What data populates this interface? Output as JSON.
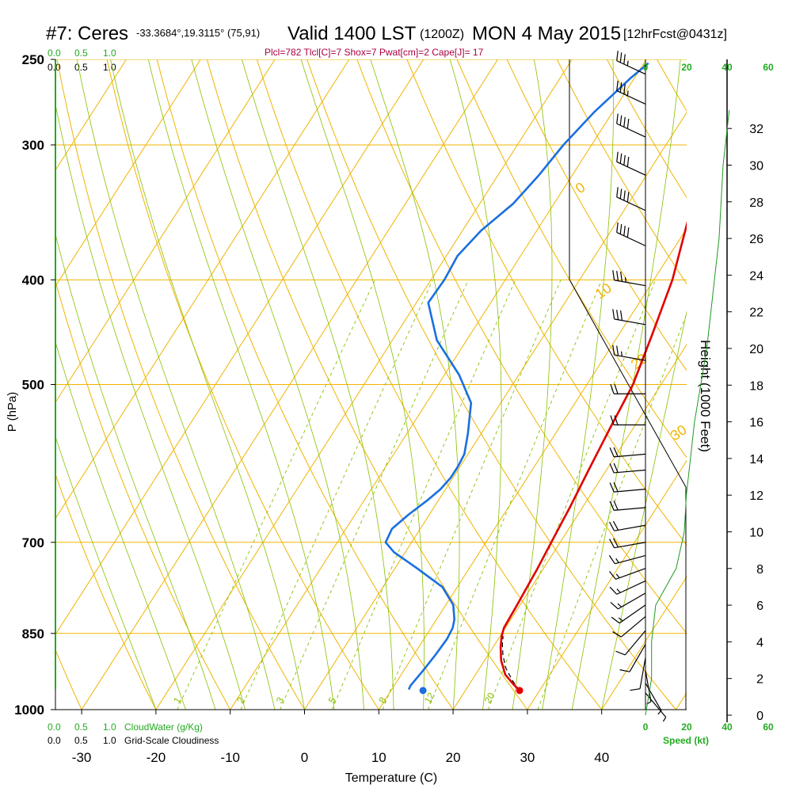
{
  "header": {
    "station": "#7: Ceres",
    "coords": "-33.3684°,19.3115° (75,91)",
    "valid": "Valid 1400 LST",
    "zulu": "(1200Z)",
    "date": "MON 4 May 2015",
    "fcst": "[12hrFcst@0431z]",
    "params": "Plcl=782 Tlcl[C]=7 Shox=7 Pwat[cm]=2 Cape[J]= 17"
  },
  "colors": {
    "temperature": "#e00000",
    "dewpoint": "#1a6fe0",
    "isotherm": "#f0b400",
    "dry_adiabat": "#f0b400",
    "moist_adiabat": "#88c000",
    "mixing_ratio": "#88c000",
    "cloud_scale": "#22aa22",
    "params_text": "#aa0044",
    "height_curve": "#229922"
  },
  "scales": {
    "cloudwater_ticks": [
      "0.0",
      "0.5",
      "1.0"
    ],
    "cloudiness_ticks": [
      "0.0",
      "0.5",
      "1.0"
    ],
    "cloudwater_label": "CloudWater (g/Kg)",
    "cloudiness_label": "Grid-Scale Cloudiness",
    "speed_ticks": [
      "0",
      "20",
      "40",
      "60"
    ],
    "speed_label": "Speed (kt)"
  },
  "axis_labels": {
    "pressure_label": "P (hPa)",
    "temperature_label": "Temperature (C)",
    "height_label": "Height (1000 Feet)"
  },
  "chart_data": {
    "type": "line",
    "y_scale": "log-pressure",
    "ylim": [
      1000,
      250
    ],
    "xlim": [
      -35,
      36
    ],
    "grid": true,
    "pressure_ticks": [
      250,
      300,
      400,
      500,
      700,
      850,
      1000
    ],
    "temperature_ticks": [
      -30,
      -20,
      -10,
      0,
      10,
      20,
      30,
      40
    ],
    "height_ticks": [
      0,
      2,
      4,
      6,
      8,
      10,
      12,
      14,
      16,
      18,
      20,
      22,
      24,
      26,
      28,
      30,
      32
    ],
    "isotherm_labels": [
      "10",
      "0",
      "-10",
      "-20",
      "-30"
    ],
    "adiabat_labels": [
      "0",
      "10",
      "20",
      "30"
    ],
    "mixing_ratio_labels": [
      "1",
      "2",
      "3",
      "5",
      "8",
      "12",
      "20"
    ],
    "series": [
      {
        "name": "Temperature",
        "points": [
          [
            27.3,
            960
          ],
          [
            26,
            948
          ],
          [
            24,
            928
          ],
          [
            22.2,
            900
          ],
          [
            21,
            875
          ],
          [
            20.2,
            855
          ],
          [
            19.8,
            840
          ],
          [
            19.6,
            800
          ],
          [
            19.2,
            740
          ],
          [
            18.8,
            700
          ],
          [
            18.3,
            650
          ],
          [
            17.6,
            600
          ],
          [
            16.9,
            550
          ],
          [
            16.2,
            500
          ],
          [
            14.5,
            450
          ],
          [
            12.5,
            400
          ],
          [
            9.3,
            350
          ],
          [
            6,
            300
          ],
          [
            4.5,
            280
          ],
          [
            3,
            260
          ],
          [
            2,
            250
          ]
        ]
      },
      {
        "name": "Dewpoint",
        "points": [
          [
            12.3,
            958
          ],
          [
            12.2,
            950
          ],
          [
            12.6,
            920
          ],
          [
            12.9,
            890
          ],
          [
            13.1,
            860
          ],
          [
            12.9,
            840
          ],
          [
            12.4,
            825
          ],
          [
            11,
            800
          ],
          [
            8,
            770
          ],
          [
            3,
            740
          ],
          [
            -1.5,
            715
          ],
          [
            -3.5,
            700
          ],
          [
            -3.8,
            680
          ],
          [
            -2.8,
            660
          ],
          [
            -1.5,
            640
          ],
          [
            -0.7,
            625
          ],
          [
            -0.3,
            610
          ],
          [
            -0.3,
            595
          ],
          [
            -0.5,
            580
          ],
          [
            -1.8,
            555
          ],
          [
            -4,
            520
          ],
          [
            -8,
            490
          ],
          [
            -14,
            455
          ],
          [
            -18.4,
            420
          ],
          [
            -18.2,
            400
          ],
          [
            -18.5,
            380
          ],
          [
            -17.5,
            360
          ],
          [
            -15.5,
            340
          ],
          [
            -14.5,
            320
          ],
          [
            -13.8,
            300
          ],
          [
            -12.5,
            280
          ],
          [
            -10.5,
            260
          ],
          [
            -9.4,
            252
          ]
        ]
      }
    ],
    "parcel": [
      [
        27.3,
        960
      ],
      [
        25.5,
        940
      ],
      [
        23.5,
        915
      ],
      [
        22,
        890
      ],
      [
        21,
        870
      ],
      [
        20.4,
        855
      ]
    ],
    "surface_temperature": [
      27.3,
      960
    ],
    "surface_dewpoint": [
      14.3,
      960
    ],
    "wind_barbs": [
      {
        "p": 258,
        "dir": 295,
        "spd": 35
      },
      {
        "p": 275,
        "dir": 295,
        "spd": 35
      },
      {
        "p": 295,
        "dir": 295,
        "spd": 40
      },
      {
        "p": 320,
        "dir": 295,
        "spd": 40
      },
      {
        "p": 345,
        "dir": 295,
        "spd": 40
      },
      {
        "p": 372,
        "dir": 295,
        "spd": 40
      },
      {
        "p": 405,
        "dir": 280,
        "spd": 35
      },
      {
        "p": 440,
        "dir": 280,
        "spd": 30
      },
      {
        "p": 475,
        "dir": 280,
        "spd": 25
      },
      {
        "p": 510,
        "dir": 270,
        "spd": 20
      },
      {
        "p": 545,
        "dir": 270,
        "spd": 20
      },
      {
        "p": 580,
        "dir": 265,
        "spd": 20
      },
      {
        "p": 600,
        "dir": 265,
        "spd": 20
      },
      {
        "p": 625,
        "dir": 265,
        "spd": 20
      },
      {
        "p": 650,
        "dir": 265,
        "spd": 20
      },
      {
        "p": 675,
        "dir": 260,
        "spd": 20
      },
      {
        "p": 700,
        "dir": 260,
        "spd": 20
      },
      {
        "p": 720,
        "dir": 255,
        "spd": 15
      },
      {
        "p": 740,
        "dir": 250,
        "spd": 15
      },
      {
        "p": 760,
        "dir": 245,
        "spd": 15
      },
      {
        "p": 780,
        "dir": 240,
        "spd": 15
      },
      {
        "p": 800,
        "dir": 235,
        "spd": 15
      },
      {
        "p": 820,
        "dir": 230,
        "spd": 10
      },
      {
        "p": 845,
        "dir": 220,
        "spd": 10
      },
      {
        "p": 870,
        "dir": 210,
        "spd": 10
      },
      {
        "p": 895,
        "dir": 190,
        "spd": 10
      },
      {
        "p": 920,
        "dir": 170,
        "spd": 5
      },
      {
        "p": 945,
        "dir": 150,
        "spd": 5
      },
      {
        "p": 965,
        "dir": 140,
        "spd": 5
      }
    ],
    "height_profile_kft": [
      [
        0,
        0
      ],
      [
        2,
        3
      ],
      [
        4,
        3
      ],
      [
        6,
        5
      ],
      [
        8,
        15
      ],
      [
        10,
        19
      ],
      [
        12,
        20
      ],
      [
        14,
        22
      ],
      [
        16,
        24
      ],
      [
        18,
        27
      ],
      [
        20,
        30
      ],
      [
        22,
        32
      ],
      [
        24,
        34
      ],
      [
        26,
        36
      ],
      [
        28,
        37
      ],
      [
        30,
        38
      ],
      [
        32,
        40
      ],
      [
        33,
        41
      ]
    ]
  }
}
